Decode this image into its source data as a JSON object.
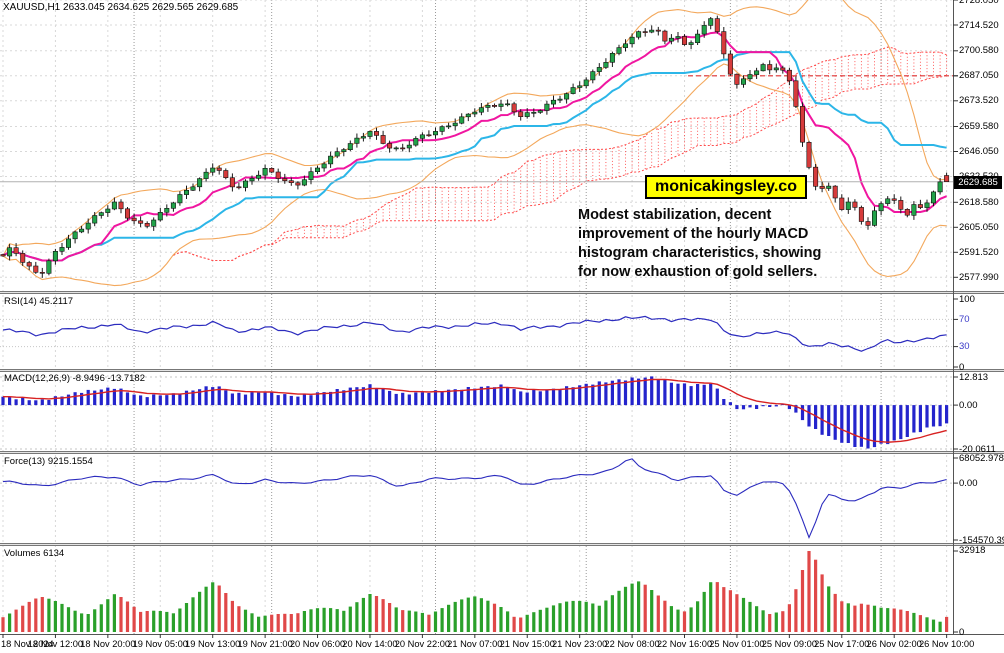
{
  "app": {
    "title_bar": "XAUUSD,H1 2633.045 2634.625 2629.565 2629.685",
    "symbol": "XAUUSD",
    "period": "H1"
  },
  "branding": {
    "label": "monicakingsley.co",
    "bg": "#ffff00"
  },
  "annotation": {
    "text": "Modest stabilization, decent\nimprovement of the hourly MACD\nhistogram characteristics, showing\nfor now exhaustion of gold sellers."
  },
  "panels": {
    "main": {
      "current_price": "2629.685",
      "red_level": 2687.05,
      "price_axis": [
        "2728.050",
        "2714.520",
        "2700.580",
        "2687.050",
        "2673.520",
        "2659.580",
        "2646.050",
        "2632.520",
        "2618.580",
        "2605.050",
        "2591.520",
        "2577.990"
      ]
    },
    "rsi": {
      "label": "RSI(14) 45.2117",
      "axis": [
        {
          "t": "100",
          "v": 100,
          "lvl": false
        },
        {
          "t": "70",
          "v": 70,
          "lvl": true
        },
        {
          "t": "30",
          "v": 30,
          "lvl": true
        },
        {
          "t": "0",
          "v": 0,
          "lvl": false
        }
      ]
    },
    "macd": {
      "label": "MACD(12,26,9) -8.9496 -13.7182",
      "axis": [
        {
          "t": "12.813",
          "v": 12.813
        },
        {
          "t": "0.00",
          "v": 0
        },
        {
          "t": "-20.0611",
          "v": -20.0611
        }
      ]
    },
    "force": {
      "label": "Force(13) 9215.1554",
      "axis": [
        {
          "t": "68052.9782",
          "v": 68052.9782
        },
        {
          "t": "0.00",
          "v": 0
        },
        {
          "t": "-154570.39",
          "v": -154570.39
        }
      ]
    },
    "volumes": {
      "label": "Volumes 6134",
      "axis": [
        {
          "t": "32918",
          "v": 32918
        },
        {
          "t": "0",
          "v": 0
        }
      ]
    }
  },
  "colors": {
    "grid": "#d8d8d8",
    "day_sep": "#9a9a9a",
    "up": "#21a249",
    "down": "#d63b3b",
    "wick": "#1a1a1a",
    "tenkan": "#f016a0",
    "kijun": "#2cb6e8",
    "boll": "#f3a85c",
    "cloud": "#ff4d4d",
    "rsi_line": "#2b2bbe",
    "level_label": "#3a3ac8",
    "level_line": "#c6c6c6",
    "macd_hist": "#2424cc",
    "macd_signal": "#d82222",
    "force_line": "#2b2bbe",
    "vol_up": "#2aa02a",
    "vol_down": "#e04848",
    "badge_bg": "#000000",
    "badge_fg": "#ffffff",
    "red_level": "#e03030",
    "price_line": "#b0b0b0",
    "border": "#555555"
  },
  "chart_data": {
    "type": "candlestick",
    "symbol": "XAUUSD",
    "timeframe": "H1",
    "bars_rendered": 145,
    "current_bar": {
      "open": 2633.045,
      "high": 2634.625,
      "low": 2629.565,
      "close": 2629.685
    },
    "legend": [
      "Ichimoku cloud (red dotted)",
      "Tenkan fast line (magenta)",
      "Kijun slow line (cyan)",
      "Bollinger Bands (orange)",
      "RSI(14)",
      "MACD(12,26,9)",
      "Force(13)",
      "Volumes"
    ],
    "ylim_main": [
      2570.6,
      2728.05
    ],
    "price_waypoints": [
      [
        2,
        2589
      ],
      [
        12,
        2594
      ],
      [
        25,
        2584
      ],
      [
        40,
        2579
      ],
      [
        55,
        2592
      ],
      [
        70,
        2600
      ],
      [
        85,
        2606
      ],
      [
        100,
        2612
      ],
      [
        115,
        2618
      ],
      [
        130,
        2610
      ],
      [
        145,
        2606
      ],
      [
        160,
        2612
      ],
      [
        175,
        2619
      ],
      [
        190,
        2626
      ],
      [
        205,
        2634
      ],
      [
        215,
        2640
      ],
      [
        225,
        2632
      ],
      [
        235,
        2626
      ],
      [
        250,
        2630
      ],
      [
        265,
        2636
      ],
      [
        280,
        2632
      ],
      [
        295,
        2628
      ],
      [
        310,
        2634
      ],
      [
        325,
        2640
      ],
      [
        340,
        2646
      ],
      [
        355,
        2652
      ],
      [
        370,
        2658
      ],
      [
        385,
        2650
      ],
      [
        400,
        2646
      ],
      [
        415,
        2652
      ],
      [
        430,
        2656
      ],
      [
        445,
        2660
      ],
      [
        460,
        2664
      ],
      [
        475,
        2668
      ],
      [
        490,
        2670
      ],
      [
        505,
        2672
      ],
      [
        520,
        2666
      ],
      [
        535,
        2668
      ],
      [
        550,
        2672
      ],
      [
        565,
        2676
      ],
      [
        580,
        2682
      ],
      [
        595,
        2690
      ],
      [
        610,
        2698
      ],
      [
        625,
        2705
      ],
      [
        640,
        2710
      ],
      [
        655,
        2712
      ],
      [
        665,
        2706
      ],
      [
        675,
        2710
      ],
      [
        685,
        2704
      ],
      [
        695,
        2708
      ],
      [
        705,
        2714
      ],
      [
        713,
        2720
      ],
      [
        722,
        2700
      ],
      [
        730,
        2688
      ],
      [
        738,
        2682
      ],
      [
        746,
        2686
      ],
      [
        754,
        2690
      ],
      [
        762,
        2694
      ],
      [
        770,
        2690
      ],
      [
        778,
        2693
      ],
      [
        786,
        2688
      ],
      [
        794,
        2676
      ],
      [
        802,
        2652
      ],
      [
        810,
        2634
      ],
      [
        818,
        2624
      ],
      [
        826,
        2630
      ],
      [
        834,
        2622
      ],
      [
        842,
        2616
      ],
      [
        850,
        2620
      ],
      [
        858,
        2612
      ],
      [
        866,
        2604
      ],
      [
        874,
        2612
      ],
      [
        882,
        2618
      ],
      [
        890,
        2622
      ],
      [
        898,
        2616
      ],
      [
        906,
        2612
      ],
      [
        914,
        2618
      ],
      [
        922,
        2615
      ],
      [
        930,
        2622
      ],
      [
        938,
        2628
      ],
      [
        946,
        2629.7
      ]
    ],
    "rsi_waypoints": [
      [
        0,
        55
      ],
      [
        40,
        48
      ],
      [
        80,
        58
      ],
      [
        115,
        62
      ],
      [
        140,
        52
      ],
      [
        175,
        58
      ],
      [
        215,
        65
      ],
      [
        235,
        52
      ],
      [
        265,
        58
      ],
      [
        295,
        50
      ],
      [
        340,
        60
      ],
      [
        370,
        65
      ],
      [
        400,
        52
      ],
      [
        430,
        58
      ],
      [
        475,
        62
      ],
      [
        505,
        65
      ],
      [
        520,
        55
      ],
      [
        550,
        60
      ],
      [
        580,
        65
      ],
      [
        610,
        70
      ],
      [
        640,
        72
      ],
      [
        655,
        73
      ],
      [
        675,
        68
      ],
      [
        695,
        70
      ],
      [
        713,
        72
      ],
      [
        722,
        55
      ],
      [
        738,
        42
      ],
      [
        762,
        52
      ],
      [
        786,
        50
      ],
      [
        794,
        42
      ],
      [
        810,
        30
      ],
      [
        826,
        35
      ],
      [
        842,
        30
      ],
      [
        866,
        25
      ],
      [
        882,
        38
      ],
      [
        898,
        35
      ],
      [
        914,
        40
      ],
      [
        930,
        42
      ],
      [
        946,
        45.2
      ]
    ],
    "macd_waypoints": [
      [
        0,
        4
      ],
      [
        40,
        2
      ],
      [
        80,
        6
      ],
      [
        115,
        8
      ],
      [
        140,
        4
      ],
      [
        175,
        5
      ],
      [
        215,
        9
      ],
      [
        235,
        5
      ],
      [
        265,
        6
      ],
      [
        295,
        4
      ],
      [
        340,
        7
      ],
      [
        370,
        9
      ],
      [
        400,
        5
      ],
      [
        430,
        6
      ],
      [
        475,
        8
      ],
      [
        505,
        9
      ],
      [
        520,
        6
      ],
      [
        550,
        7
      ],
      [
        580,
        9
      ],
      [
        610,
        11
      ],
      [
        640,
        12.5
      ],
      [
        655,
        12.8
      ],
      [
        675,
        10
      ],
      [
        695,
        9
      ],
      [
        713,
        10
      ],
      [
        722,
        4
      ],
      [
        738,
        -2
      ],
      [
        762,
        -1
      ],
      [
        786,
        0
      ],
      [
        794,
        -3
      ],
      [
        810,
        -10
      ],
      [
        826,
        -14
      ],
      [
        842,
        -17
      ],
      [
        858,
        -19
      ],
      [
        866,
        -20
      ],
      [
        882,
        -18
      ],
      [
        898,
        -16
      ],
      [
        914,
        -13
      ],
      [
        930,
        -10
      ],
      [
        946,
        -8.9
      ]
    ],
    "force_waypoints": [
      [
        0,
        5000
      ],
      [
        40,
        -8000
      ],
      [
        80,
        12000
      ],
      [
        115,
        18000
      ],
      [
        140,
        -5000
      ],
      [
        175,
        8000
      ],
      [
        215,
        22000
      ],
      [
        235,
        -6000
      ],
      [
        265,
        10000
      ],
      [
        295,
        -4000
      ],
      [
        340,
        15000
      ],
      [
        370,
        20000
      ],
      [
        400,
        -8000
      ],
      [
        430,
        10000
      ],
      [
        475,
        15000
      ],
      [
        505,
        18000
      ],
      [
        520,
        -5000
      ],
      [
        550,
        8000
      ],
      [
        580,
        20000
      ],
      [
        610,
        35000
      ],
      [
        630,
        68000
      ],
      [
        640,
        40000
      ],
      [
        655,
        30000
      ],
      [
        675,
        10000
      ],
      [
        695,
        15000
      ],
      [
        713,
        20000
      ],
      [
        722,
        -20000
      ],
      [
        738,
        -30000
      ],
      [
        762,
        5000
      ],
      [
        786,
        -5000
      ],
      [
        794,
        -40000
      ],
      [
        810,
        -154570
      ],
      [
        818,
        -80000
      ],
      [
        826,
        -30000
      ],
      [
        842,
        -45000
      ],
      [
        858,
        -50000
      ],
      [
        866,
        -35000
      ],
      [
        882,
        -10000
      ],
      [
        898,
        -15000
      ],
      [
        914,
        -5000
      ],
      [
        930,
        2000
      ],
      [
        946,
        9215
      ]
    ],
    "volume_waypoints": [
      [
        0,
        9000
      ],
      [
        40,
        14000
      ],
      [
        80,
        10000
      ],
      [
        115,
        16000
      ],
      [
        140,
        8000
      ],
      [
        175,
        12000
      ],
      [
        215,
        20000
      ],
      [
        235,
        12000
      ],
      [
        265,
        9000
      ],
      [
        295,
        7000
      ],
      [
        340,
        13000
      ],
      [
        370,
        16000
      ],
      [
        400,
        9000
      ],
      [
        430,
        11000
      ],
      [
        475,
        14000
      ],
      [
        505,
        12000
      ],
      [
        520,
        8000
      ],
      [
        550,
        10000
      ],
      [
        580,
        14000
      ],
      [
        610,
        18000
      ],
      [
        640,
        20000
      ],
      [
        655,
        16000
      ],
      [
        675,
        12000
      ],
      [
        695,
        14000
      ],
      [
        713,
        22000
      ],
      [
        722,
        18000
      ],
      [
        738,
        15000
      ],
      [
        762,
        12000
      ],
      [
        786,
        10000
      ],
      [
        794,
        16000
      ],
      [
        810,
        32918
      ],
      [
        826,
        20000
      ],
      [
        842,
        15000
      ],
      [
        858,
        17000
      ],
      [
        866,
        14000
      ],
      [
        882,
        10000
      ],
      [
        898,
        9000
      ],
      [
        914,
        8000
      ],
      [
        930,
        7000
      ],
      [
        946,
        6134
      ]
    ],
    "time_labels": [
      "18 Nov 2024",
      "18 Nov 12:00",
      "18 Nov 20:00",
      "19 Nov 05:00",
      "19 Nov 13:00",
      "19 Nov 21:00",
      "20 Nov 06:00",
      "20 Nov 14:00",
      "20 Nov 22:00",
      "21 Nov 07:00",
      "21 Nov 15:00",
      "21 Nov 23:00",
      "22 Nov 08:00",
      "22 Nov 16:00",
      "25 Nov 01:00",
      "25 Nov 09:00",
      "25 Nov 17:00",
      "26 Nov 02:00",
      "26 Nov 10:00"
    ]
  }
}
